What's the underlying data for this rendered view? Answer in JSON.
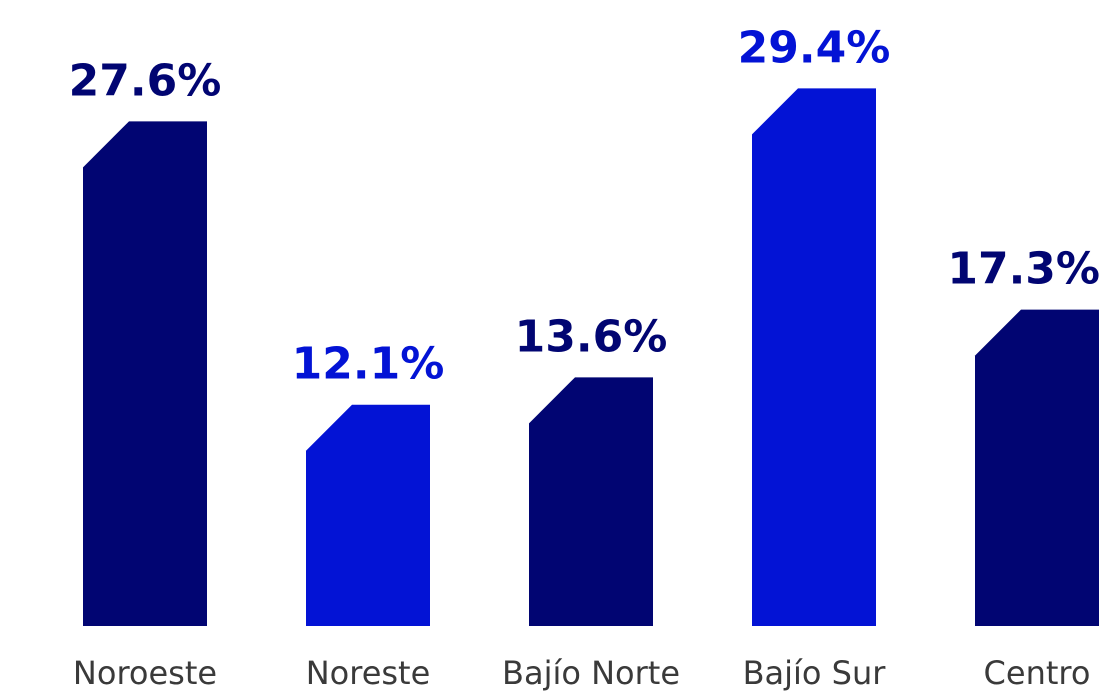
{
  "chart_data": {
    "type": "bar",
    "categories": [
      "Noroeste",
      "Noreste",
      "Bajío Norte",
      "Bajío Sur",
      "Centro"
    ],
    "values": [
      27.6,
      12.1,
      13.6,
      29.4,
      17.3
    ],
    "value_labels": [
      "27.6%",
      "12.1%",
      "13.6%",
      "29.4%",
      "17.3%"
    ],
    "colors": [
      "#010572",
      "#0313d5",
      "#010572",
      "#0313d5",
      "#010572"
    ],
    "ylim": [
      0,
      31.5
    ]
  }
}
